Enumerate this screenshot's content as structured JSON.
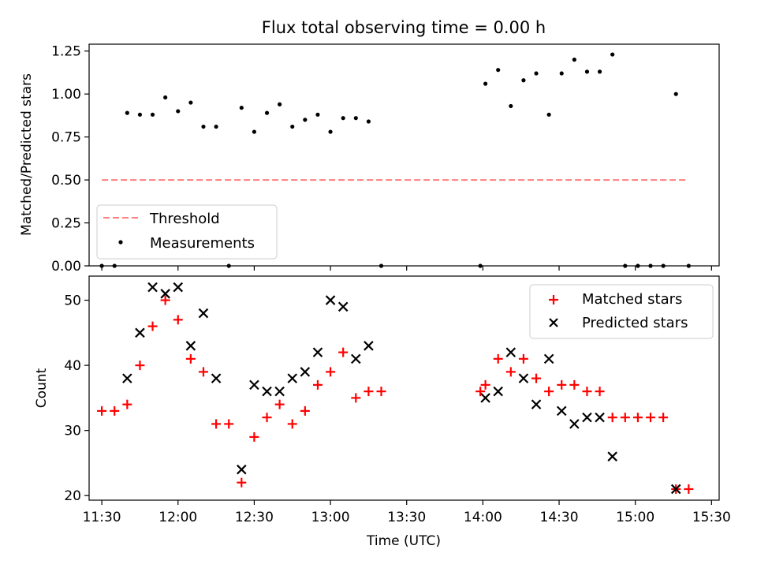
{
  "chart_data": [
    {
      "type": "scatter",
      "title": "Flux total observing time = 0.00 h",
      "ylabel": "Matched/Predicted stars",
      "xlabel": "",
      "xlim": [
        "11:25",
        "15:33"
      ],
      "ylim": [
        0,
        1.29
      ],
      "yticks": [
        "0.00",
        "0.25",
        "0.50",
        "0.75",
        "1.00",
        "1.25"
      ],
      "legend_position": "lower-left",
      "legend": {
        "threshold": "Threshold",
        "measurements": "Measurements"
      },
      "threshold": {
        "value": 0.5,
        "x_start": "11:30",
        "x_end": "15:20",
        "color": "#ff7f7f"
      },
      "series": [
        {
          "name": "Measurements",
          "color": "#000000",
          "points": [
            [
              "11:30",
              0
            ],
            [
              "11:35",
              0
            ],
            [
              "11:40",
              0.89
            ],
            [
              "11:45",
              0.88
            ],
            [
              "11:50",
              0.88
            ],
            [
              "11:55",
              0.98
            ],
            [
              "12:00",
              0.9
            ],
            [
              "12:05",
              0.95
            ],
            [
              "12:10",
              0.81
            ],
            [
              "12:15",
              0.81
            ],
            [
              "12:20",
              0
            ],
            [
              "12:25",
              0.92
            ],
            [
              "12:30",
              0.78
            ],
            [
              "12:35",
              0.89
            ],
            [
              "12:40",
              0.94
            ],
            [
              "12:45",
              0.81
            ],
            [
              "12:50",
              0.85
            ],
            [
              "12:55",
              0.88
            ],
            [
              "13:00",
              0.78
            ],
            [
              "13:05",
              0.86
            ],
            [
              "13:10",
              0.86
            ],
            [
              "13:15",
              0.84
            ],
            [
              "13:20",
              0
            ],
            [
              "13:59",
              0
            ],
            [
              "14:01",
              1.06
            ],
            [
              "14:06",
              1.14
            ],
            [
              "14:11",
              0.93
            ],
            [
              "14:16",
              1.08
            ],
            [
              "14:21",
              1.12
            ],
            [
              "14:26",
              0.88
            ],
            [
              "14:31",
              1.12
            ],
            [
              "14:36",
              1.2
            ],
            [
              "14:41",
              1.13
            ],
            [
              "14:46",
              1.13
            ],
            [
              "14:51",
              1.23
            ],
            [
              "14:56",
              0
            ],
            [
              "15:01",
              0
            ],
            [
              "15:06",
              0
            ],
            [
              "15:11",
              0
            ],
            [
              "15:16",
              1.0
            ],
            [
              "15:21",
              0
            ]
          ]
        }
      ]
    },
    {
      "type": "scatter",
      "title": "",
      "xlabel": "Time (UTC)",
      "ylabel": "Count",
      "xlim": [
        "11:25",
        "15:33"
      ],
      "ylim": [
        19.3,
        53.7
      ],
      "yticks": [
        "20",
        "30",
        "40",
        "50"
      ],
      "xticks": [
        "11:30",
        "12:00",
        "12:30",
        "13:00",
        "13:30",
        "14:00",
        "14:30",
        "15:00",
        "15:30"
      ],
      "legend_position": "upper-right",
      "series": [
        {
          "name": "Matched stars",
          "marker": "plus",
          "color": "#ff0000",
          "points": [
            [
              "11:30",
              33
            ],
            [
              "11:35",
              33
            ],
            [
              "11:40",
              34
            ],
            [
              "11:45",
              40
            ],
            [
              "11:50",
              46
            ],
            [
              "11:55",
              50
            ],
            [
              "12:00",
              47
            ],
            [
              "12:05",
              41
            ],
            [
              "12:10",
              39
            ],
            [
              "12:15",
              31
            ],
            [
              "12:20",
              31
            ],
            [
              "12:25",
              22
            ],
            [
              "12:30",
              29
            ],
            [
              "12:35",
              32
            ],
            [
              "12:40",
              34
            ],
            [
              "12:45",
              31
            ],
            [
              "12:50",
              33
            ],
            [
              "12:55",
              37
            ],
            [
              "13:00",
              39
            ],
            [
              "13:05",
              42
            ],
            [
              "13:10",
              35
            ],
            [
              "13:15",
              36
            ],
            [
              "13:20",
              36
            ],
            [
              "13:59",
              36
            ],
            [
              "14:01",
              37
            ],
            [
              "14:06",
              41
            ],
            [
              "14:11",
              39
            ],
            [
              "14:16",
              41
            ],
            [
              "14:21",
              38
            ],
            [
              "14:26",
              36
            ],
            [
              "14:31",
              37
            ],
            [
              "14:36",
              37
            ],
            [
              "14:41",
              36
            ],
            [
              "14:46",
              36
            ],
            [
              "14:51",
              32
            ],
            [
              "14:56",
              32
            ],
            [
              "15:01",
              32
            ],
            [
              "15:06",
              32
            ],
            [
              "15:11",
              32
            ],
            [
              "15:16",
              21
            ],
            [
              "15:21",
              21
            ]
          ]
        },
        {
          "name": "Predicted stars",
          "marker": "x",
          "color": "#000000",
          "points": [
            [
              "11:40",
              38
            ],
            [
              "11:45",
              45
            ],
            [
              "11:50",
              52
            ],
            [
              "11:55",
              51
            ],
            [
              "12:00",
              52
            ],
            [
              "12:05",
              43
            ],
            [
              "12:10",
              48
            ],
            [
              "12:15",
              38
            ],
            [
              "12:25",
              24
            ],
            [
              "12:30",
              37
            ],
            [
              "12:35",
              36
            ],
            [
              "12:40",
              36
            ],
            [
              "12:45",
              38
            ],
            [
              "12:50",
              39
            ],
            [
              "12:55",
              42
            ],
            [
              "13:00",
              50
            ],
            [
              "13:05",
              49
            ],
            [
              "13:10",
              41
            ],
            [
              "13:15",
              43
            ],
            [
              "14:01",
              35
            ],
            [
              "14:06",
              36
            ],
            [
              "14:11",
              42
            ],
            [
              "14:16",
              38
            ],
            [
              "14:21",
              34
            ],
            [
              "14:26",
              41
            ],
            [
              "14:31",
              33
            ],
            [
              "14:36",
              31
            ],
            [
              "14:41",
              32
            ],
            [
              "14:46",
              32
            ],
            [
              "14:51",
              26
            ],
            [
              "15:16",
              21
            ]
          ]
        }
      ]
    }
  ]
}
